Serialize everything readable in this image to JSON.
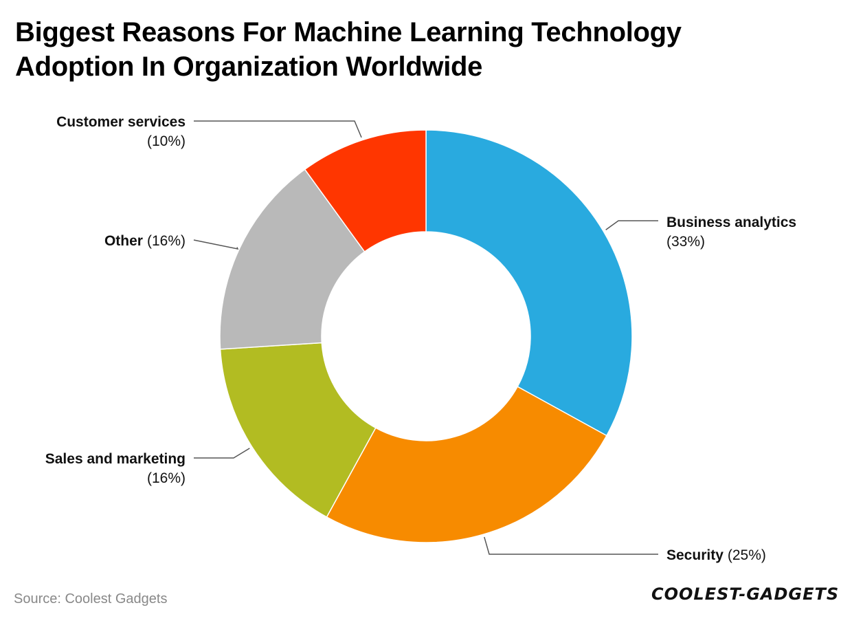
{
  "title": {
    "line1": "Biggest Reasons For Machine Learning Technology",
    "line2": "Adoption In Organization Worldwide"
  },
  "source": "Source: Coolest Gadgets",
  "logo": "COOLEST-GADGETS",
  "chart_data": {
    "type": "pie",
    "donut": true,
    "title": "Biggest Reasons For Machine Learning Technology Adoption In Organization Worldwide",
    "slices": [
      {
        "name": "Business analytics",
        "value": 33,
        "label": "(33%)",
        "color": "#29aadf"
      },
      {
        "name": "Security",
        "value": 25,
        "label": "(25%)",
        "color": "#f78b00"
      },
      {
        "name": "Sales and marketing",
        "value": 16,
        "label": "(16%)",
        "color": "#b2bc22"
      },
      {
        "name": "Other",
        "value": 16,
        "label": "(16%)",
        "color": "#b9b9b9"
      },
      {
        "name": "Customer services",
        "value": 10,
        "label": "(10%)",
        "color": "#ff3600"
      }
    ]
  }
}
